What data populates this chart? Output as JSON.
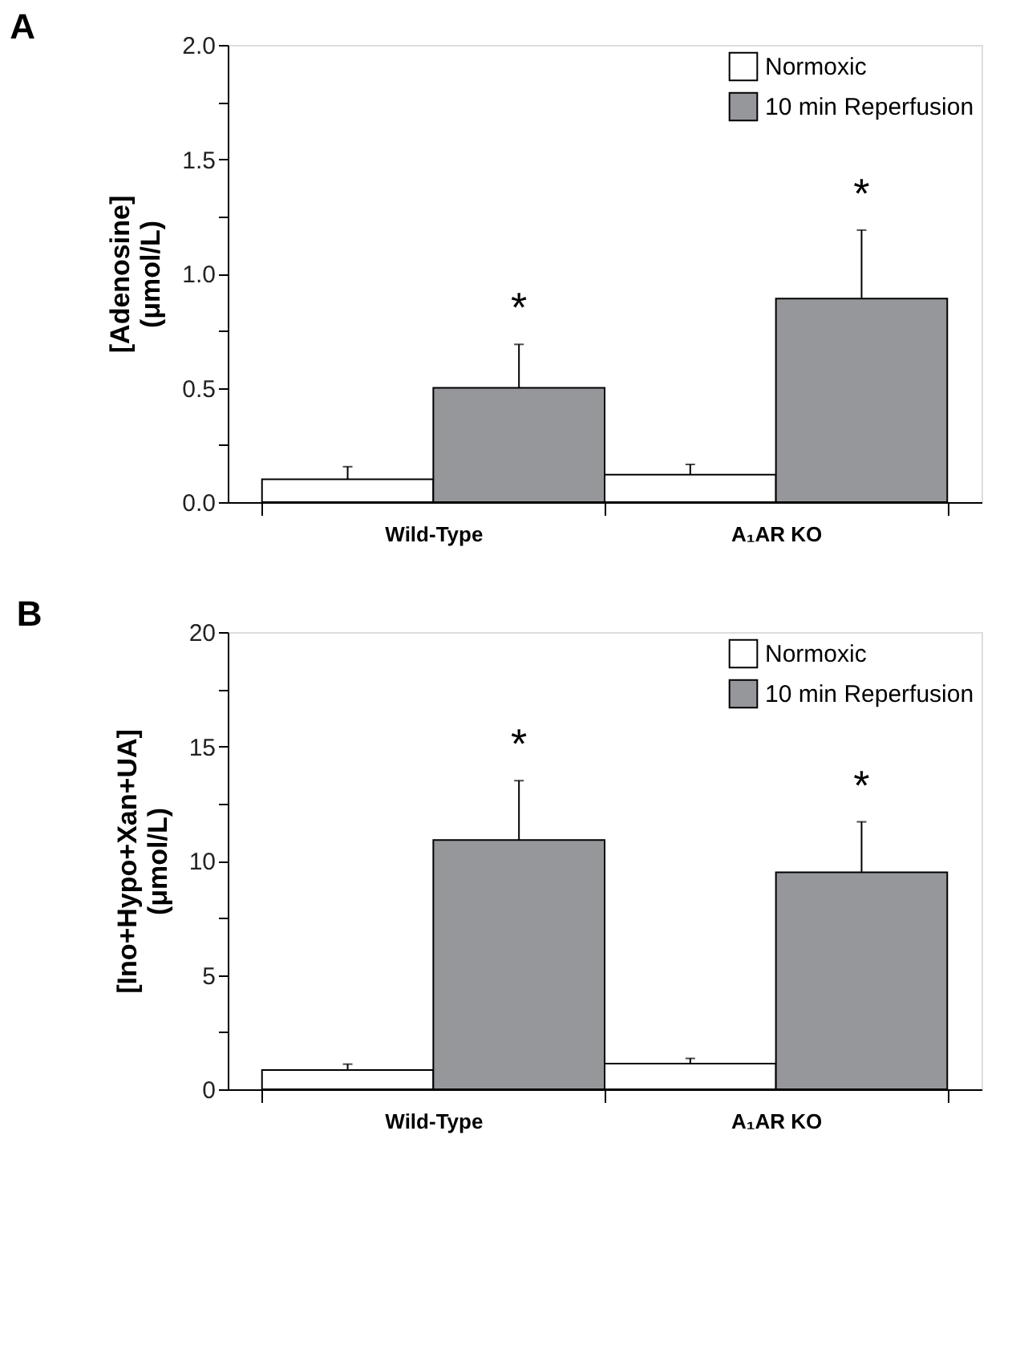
{
  "chart_data": [
    {
      "type": "bar",
      "title": "A",
      "ylabel": "[Adenosine]\n(μmol/L)",
      "categories": [
        "Wild-Type",
        "A₁AR KO"
      ],
      "series": [
        {
          "name": "Normoxic",
          "color": "#ffffff",
          "values": [
            0.1,
            0.12
          ],
          "errors": [
            [
              0.1,
              0.155
            ],
            [
              0.12,
              0.165
            ]
          ]
        },
        {
          "name": "10 min Reperfusion",
          "color": "#96979b",
          "values": [
            0.5,
            0.89
          ],
          "errors": [
            [
              0.5,
              0.69
            ],
            [
              0.89,
              1.19
            ]
          ]
        }
      ],
      "ylim": [
        0,
        2.0
      ],
      "yticks": [
        {
          "value": 0,
          "label": "0.0"
        },
        {
          "value": 0.25,
          "label": null
        },
        {
          "value": 0.5,
          "label": "0.5"
        },
        {
          "value": 0.75,
          "label": null
        },
        {
          "value": 1.0,
          "label": "1.0"
        },
        {
          "value": 1.25,
          "label": null
        },
        {
          "value": 1.5,
          "label": "1.5"
        },
        {
          "value": 1.75,
          "label": null
        },
        {
          "value": 2.0,
          "label": "2.0"
        }
      ],
      "annotations": [
        "*",
        "*"
      ],
      "grid": false,
      "legend": "top right"
    },
    {
      "type": "bar",
      "title": "B",
      "ylabel": "[Ino+Hypo+Xan+UA]\n(μmol/L)",
      "categories": [
        "Wild-Type",
        "A₁AR KO"
      ],
      "series": [
        {
          "name": "Normoxic",
          "color": "#ffffff",
          "values": [
            0.84,
            1.12
          ],
          "errors": [
            [
              0.84,
              1.1
            ],
            [
              1.12,
              1.35
            ]
          ]
        },
        {
          "name": "10 min Reperfusion",
          "color": "#96979b",
          "values": [
            10.9,
            9.49
          ],
          "errors": [
            [
              10.9,
              13.5
            ],
            [
              9.49,
              11.7
            ]
          ]
        }
      ],
      "ylim": [
        0,
        20
      ],
      "yticks": [
        0,
        {
          "value": 2.5,
          "label": null
        },
        5,
        {
          "value": 7.5,
          "label": null
        },
        10,
        {
          "value": 12.5,
          "label": null
        },
        15,
        {
          "value": 17.5,
          "label": null
        },
        20
      ],
      "annotations": [
        "*",
        "*"
      ],
      "grid": false,
      "legend": "top right"
    }
  ]
}
